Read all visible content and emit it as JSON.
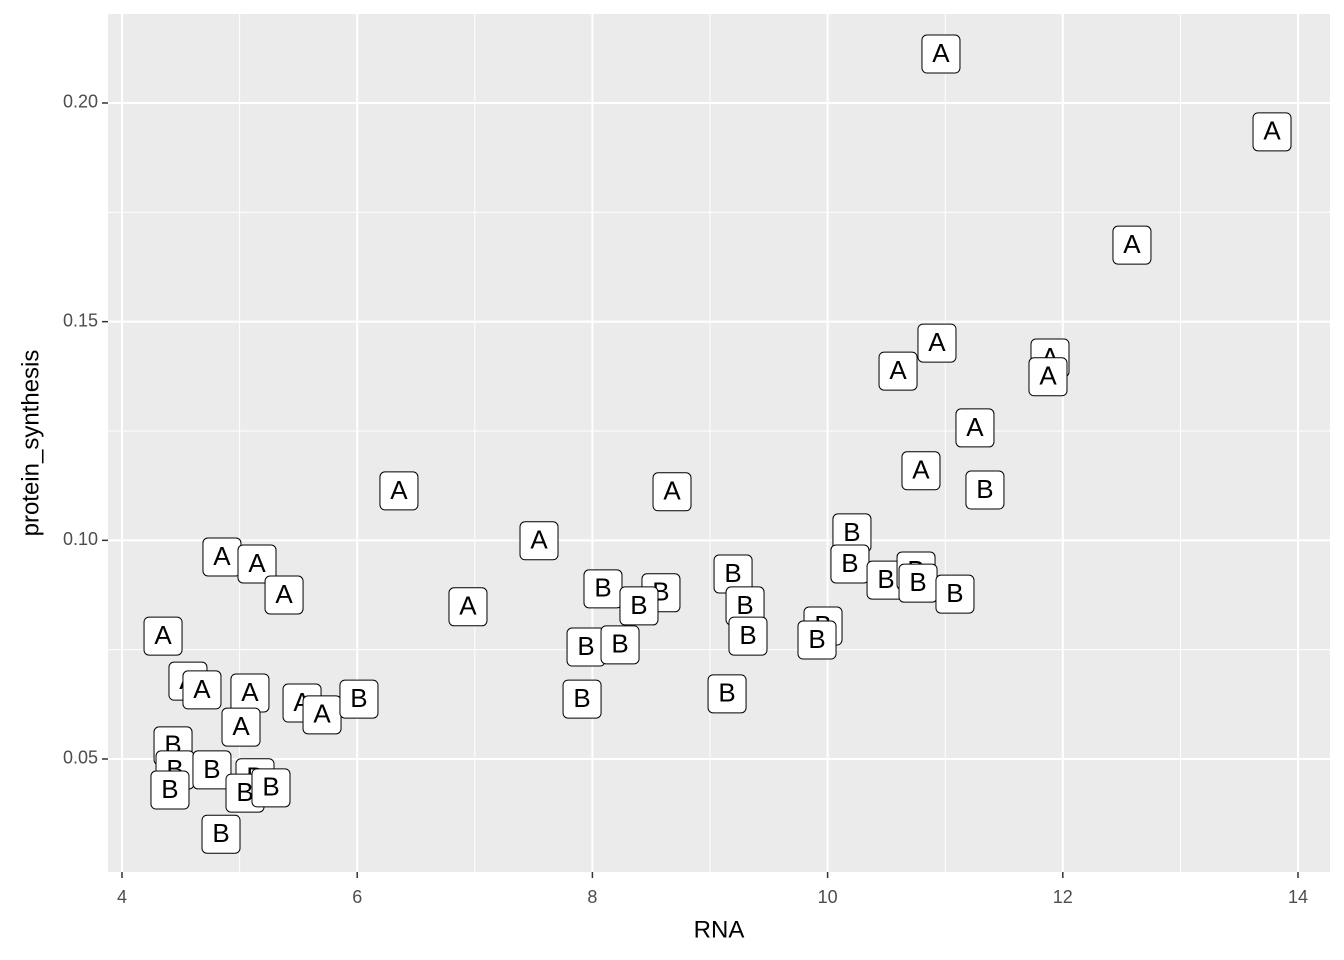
{
  "chart_data": {
    "type": "label-scatter",
    "x_label": "RNA",
    "y_label": "protein_synthesis",
    "xlim": [
      3.881,
      14.272
    ],
    "ylim": [
      0.02416,
      0.22035
    ],
    "xticks": [
      4,
      6,
      8,
      10,
      12,
      14
    ],
    "yticks": [
      0.05,
      {
        "value": 0.1,
        "label": "0.10"
      },
      0.15,
      {
        "value": 0.2,
        "label": "0.20"
      }
    ],
    "grid": true,
    "series": [
      {
        "name": "A",
        "color": "#000000",
        "x": [
          10.964,
          13.779,
          12.588,
          10.93,
          10.599,
          11.891,
          11.874,
          11.253,
          10.794,
          6.355,
          8.677,
          7.546,
          4.85,
          5.148,
          5.378,
          6.942,
          4.349,
          4.561,
          4.68,
          5.088,
          5.531,
          5.701,
          5.012
        ],
        "values": [
          0.2112,
          0.1934,
          0.1675,
          0.1451,
          0.1387,
          0.1417,
          0.1374,
          0.1257,
          0.1159,
          0.1113,
          0.1111,
          0.0999,
          0.0962,
          0.0946,
          0.0875,
          0.0848,
          0.0781,
          0.0678,
          0.0658,
          0.0651,
          0.0628,
          0.0601,
          0.0573
        ]
      },
      {
        "name": "B",
        "color": "#000000",
        "x": [
          11.338,
          10.207,
          10.19,
          9.196,
          10.497,
          10.752,
          10.769,
          11.083,
          8.09,
          8.583,
          8.396,
          9.298,
          9.323,
          9.961,
          9.91,
          7.946,
          8.235,
          6.015,
          7.912,
          9.145,
          4.434,
          4.451,
          4.408,
          4.765,
          5.131,
          5.046,
          5.267,
          4.842
        ],
        "values": [
          0.1115,
          0.1017,
          0.0946,
          0.0923,
          0.0909,
          0.093,
          0.0902,
          0.0877,
          0.0889,
          0.088,
          0.085,
          0.085,
          0.0781,
          0.0804,
          0.0772,
          0.0756,
          0.0761,
          0.0637,
          0.0637,
          0.0649,
          0.053,
          0.0475,
          0.0429,
          0.0475,
          0.0457,
          0.0422,
          0.0434,
          0.0328
        ]
      }
    ]
  }
}
